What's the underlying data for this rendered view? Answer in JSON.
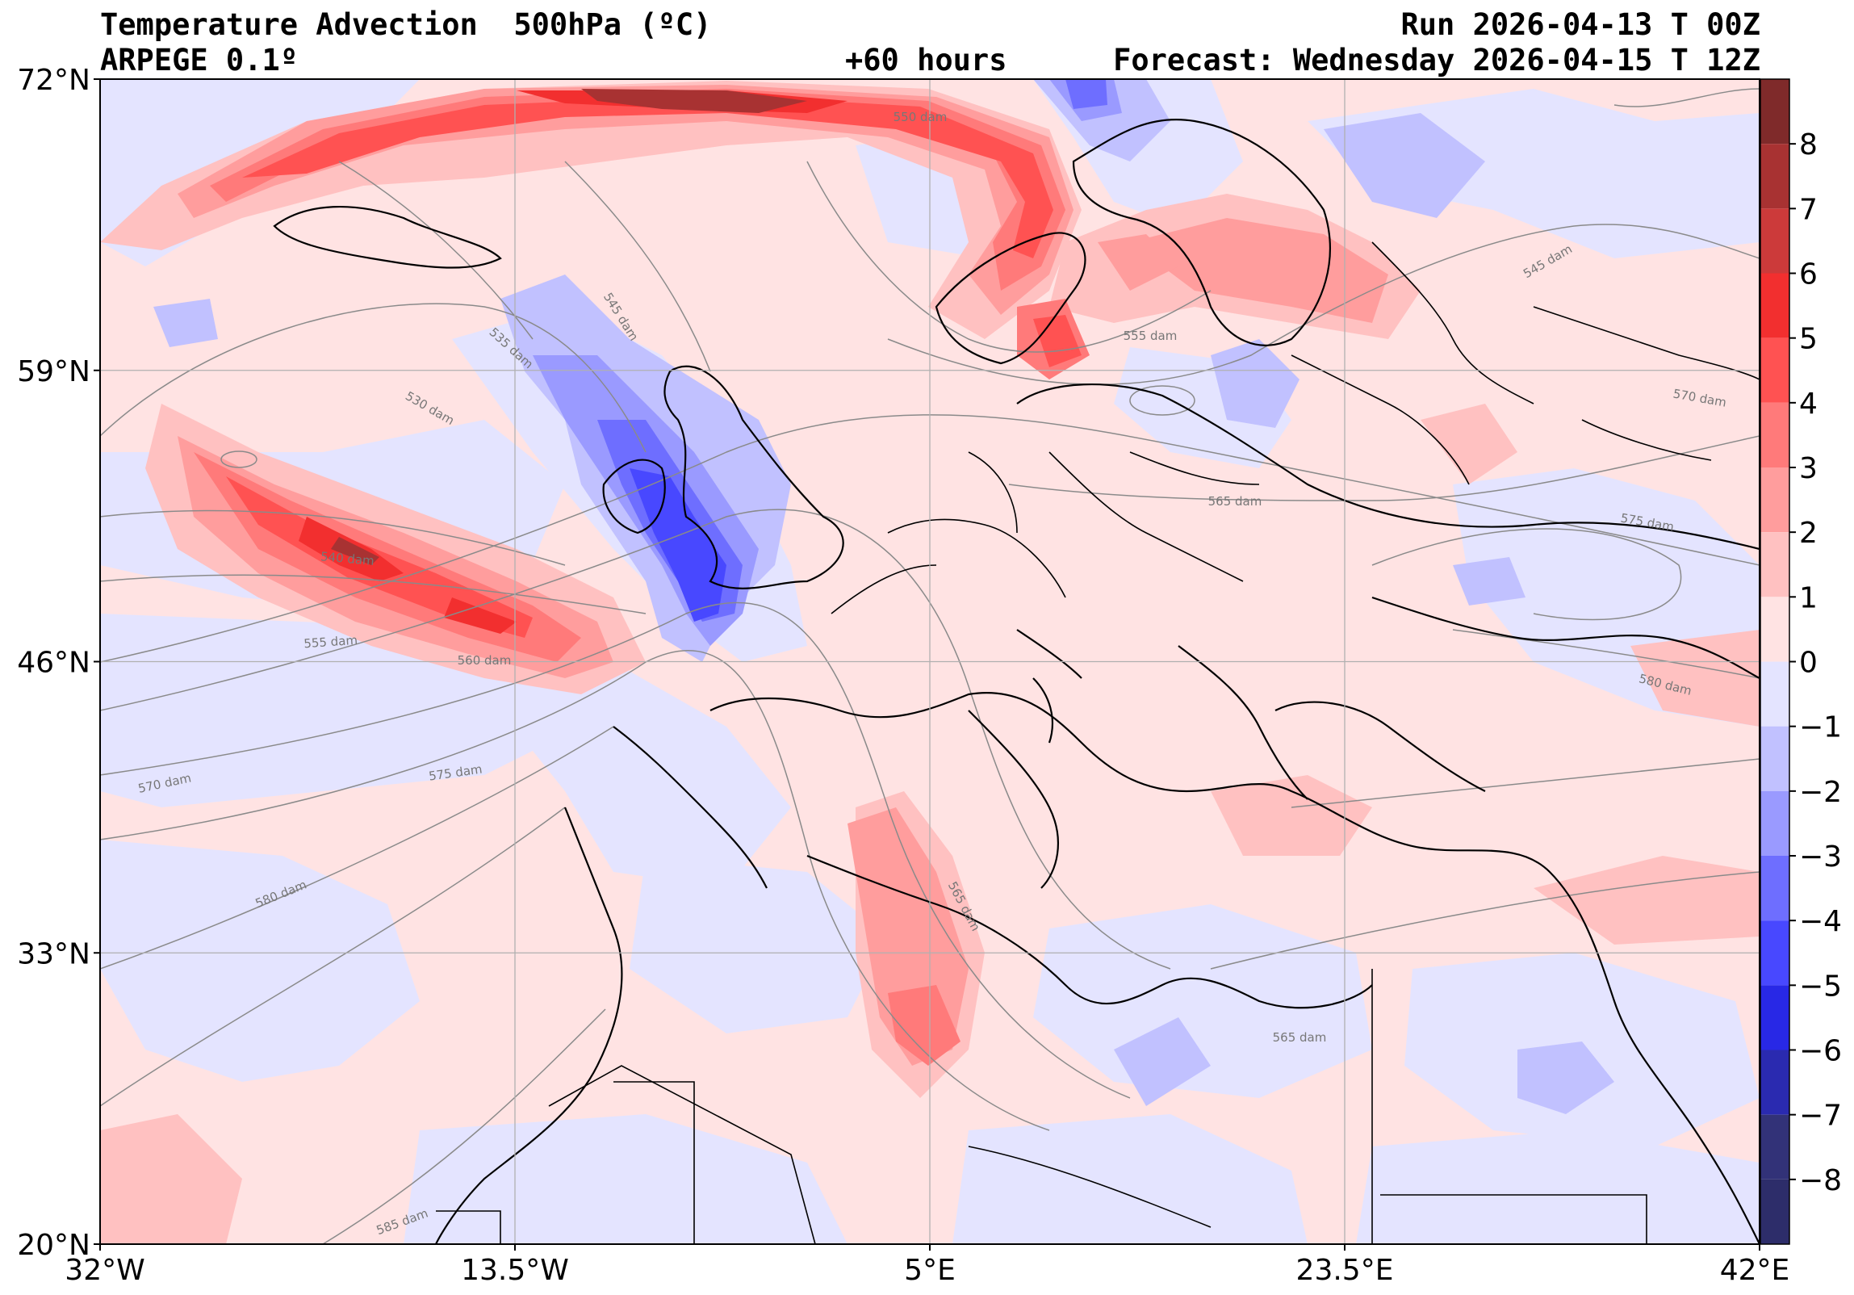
{
  "header": {
    "title": "Temperature Advection  500hPa (ºC)",
    "model": "ARPEGE 0.1º",
    "lead": "+60 hours",
    "run": "Run 2026-04-13 T 00Z",
    "forecast": "Forecast: Wednesday 2026-04-15 T 12Z"
  },
  "chart_data": {
    "type": "heatmap",
    "variable": "Temperature Advection 500hPa",
    "units": "ºC",
    "x_ticks": [
      "32°W",
      "13.5°W",
      "5°E",
      "23.5°E",
      "42°E"
    ],
    "y_ticks": [
      "72°N",
      "59°N",
      "46°N",
      "33°N",
      "20°N"
    ],
    "colorbar": {
      "ticks": [
        "8",
        "7",
        "6",
        "5",
        "4",
        "3",
        "2",
        "1",
        "0",
        "−1",
        "−2",
        "−3",
        "−4",
        "−5",
        "−6",
        "−7",
        "−8"
      ],
      "colors": [
        "#7f2a2a",
        "#a83232",
        "#cc3a3a",
        "#f22f2f",
        "#ff5252",
        "#ff7a7a",
        "#ff9d9d",
        "#ffc1c1",
        "#ffe3e3",
        "#e4e4ff",
        "#c1c1ff",
        "#9a9aff",
        "#6e6eff",
        "#4848ff",
        "#2828e6",
        "#2a2ab0",
        "#323278",
        "#2d2d6a"
      ]
    },
    "isohypse_labels": [
      "550 dam",
      "545 dam",
      "535 dam",
      "530 dam",
      "540 dam",
      "555 dam",
      "560 dam",
      "570 dam",
      "575 dam",
      "580 dam",
      "585 dam",
      "565 dam",
      "555 dam",
      "565 dam",
      "545 dam",
      "570 dam",
      "575 dam",
      "580 dam",
      "565 dam"
    ],
    "isohypse_units": "dam"
  }
}
